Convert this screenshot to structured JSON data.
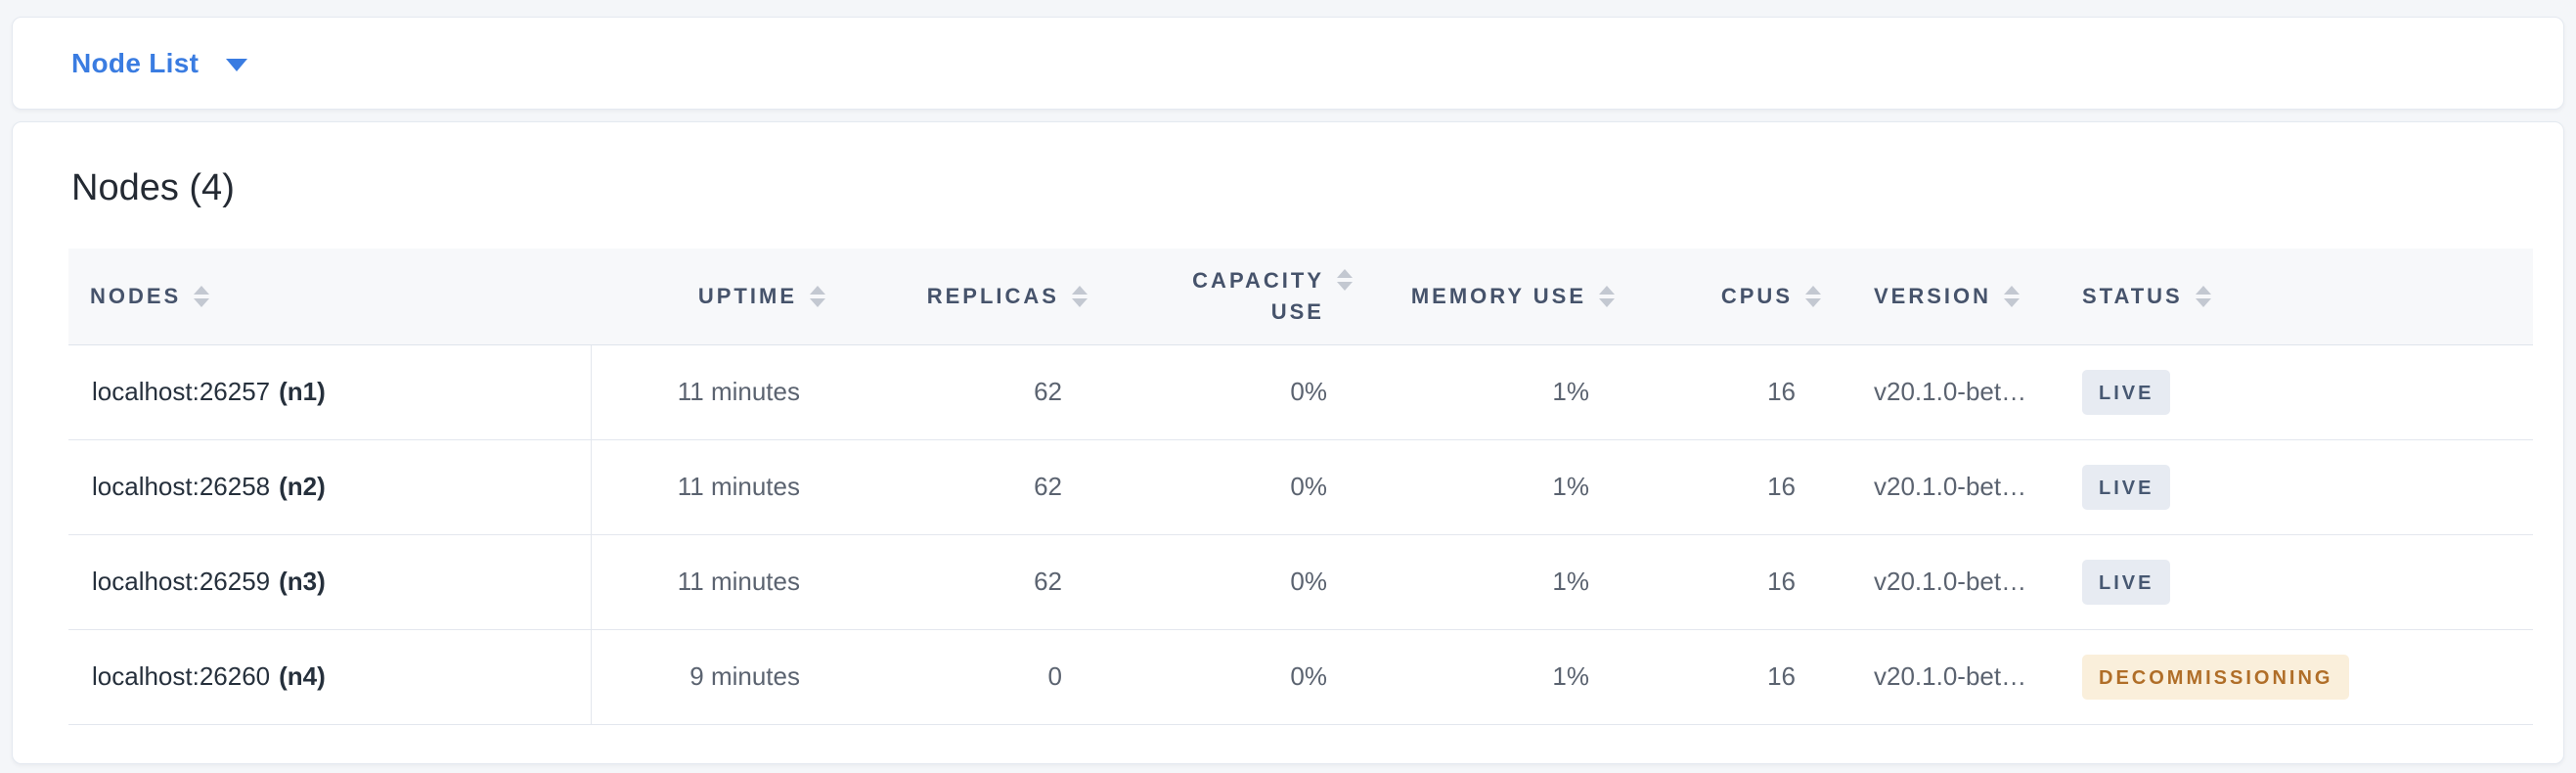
{
  "colors": {
    "accent_blue": "#3a7ce1",
    "page_background": "#f4f6f9",
    "header_text": "#46536b",
    "live_badge_bg": "#e7ebf2",
    "live_badge_text": "#475872",
    "decommissioning_badge_bg": "#faefdb",
    "decommissioning_badge_text": "#b06e28"
  },
  "toolbar": {
    "view_selector_label": "Node List",
    "caret_icon": "caret-down-icon"
  },
  "main": {
    "title": "Nodes (4)",
    "table": {
      "columns": [
        "NODES",
        "UPTIME",
        "REPLICAS",
        "CAPACITY USE",
        "MEMORY USE",
        "CPUS",
        "VERSION",
        "STATUS"
      ],
      "sort_icon": "sort-arrows-icon",
      "rows": [
        {
          "address": "localhost:26257",
          "id": "(n1)",
          "uptime": "11 minutes",
          "replicas": "62",
          "capacity_use": "0%",
          "memory_use": "1%",
          "cpus": "16",
          "version": "v20.1.0-bet…",
          "status": "LIVE"
        },
        {
          "address": "localhost:26258",
          "id": "(n2)",
          "uptime": "11 minutes",
          "replicas": "62",
          "capacity_use": "0%",
          "memory_use": "1%",
          "cpus": "16",
          "version": "v20.1.0-bet…",
          "status": "LIVE"
        },
        {
          "address": "localhost:26259",
          "id": "(n3)",
          "uptime": "11 minutes",
          "replicas": "62",
          "capacity_use": "0%",
          "memory_use": "1%",
          "cpus": "16",
          "version": "v20.1.0-bet…",
          "status": "LIVE"
        },
        {
          "address": "localhost:26260",
          "id": "(n4)",
          "uptime": "9 minutes",
          "replicas": "0",
          "capacity_use": "0%",
          "memory_use": "1%",
          "cpus": "16",
          "version": "v20.1.0-bet…",
          "status": "DECOMMISSIONING"
        }
      ]
    }
  }
}
